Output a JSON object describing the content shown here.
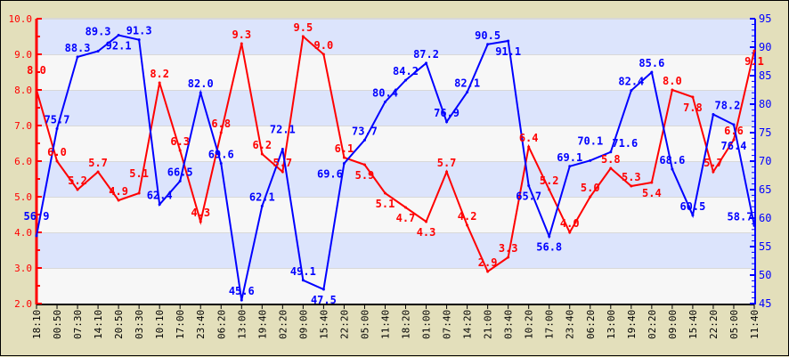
{
  "chart_data": {
    "type": "line",
    "title": "",
    "xlabel": "",
    "ylabel": "",
    "categories": [
      "18:10",
      "00:50",
      "07:30",
      "14:10",
      "20:50",
      "03:30",
      "10:10",
      "17:00",
      "23:40",
      "06:20",
      "13:00",
      "19:40",
      "02:20",
      "09:00",
      "15:40",
      "22:20",
      "05:00",
      "11:40",
      "18:20",
      "01:00",
      "07:40",
      "14:20",
      "21:00",
      "03:40",
      "10:20",
      "17:00",
      "23:40",
      "06:20",
      "13:00",
      "19:40",
      "02:20",
      "09:00",
      "15:40",
      "22:20",
      "05:00",
      "11:40"
    ],
    "left_axis": {
      "ylim": [
        2.0,
        10.0
      ],
      "ticks": [
        "2.0",
        "3.0",
        "4.0",
        "5.0",
        "6.0",
        "7.0",
        "8.0",
        "9.0",
        "10.0"
      ],
      "color": "#ff0000"
    },
    "right_axis": {
      "ylim": [
        45,
        95
      ],
      "ticks": [
        "45",
        "50",
        "55",
        "60",
        "65",
        "70",
        "75",
        "80",
        "85",
        "90",
        "95"
      ],
      "color": "#0000ff"
    },
    "grid": true,
    "band_colors": [
      "#dce4fc",
      "#f7f7f7"
    ],
    "series": [
      {
        "axis": "left",
        "color": "#ff0000",
        "values": [
          8.0,
          6.0,
          5.2,
          5.7,
          4.9,
          5.1,
          8.2,
          6.3,
          4.3,
          6.8,
          9.3,
          6.2,
          5.7,
          9.5,
          9.0,
          6.1,
          5.9,
          5.1,
          4.7,
          4.3,
          5.7,
          4.2,
          2.9,
          3.3,
          6.4,
          5.2,
          4.0,
          5.0,
          5.8,
          5.3,
          5.4,
          8.0,
          7.8,
          5.7,
          6.6,
          9.1
        ]
      },
      {
        "axis": "right",
        "color": "#0000ff",
        "values": [
          56.9,
          75.7,
          88.3,
          89.3,
          92.1,
          91.3,
          62.4,
          66.5,
          82.0,
          69.6,
          45.6,
          62.1,
          72.1,
          49.1,
          47.5,
          69.6,
          73.7,
          80.4,
          84.2,
          87.2,
          76.9,
          82.1,
          90.5,
          91.1,
          65.7,
          56.8,
          69.1,
          70.1,
          71.6,
          82.4,
          85.6,
          68.6,
          60.5,
          78.2,
          76.4,
          58.7
        ]
      }
    ]
  }
}
